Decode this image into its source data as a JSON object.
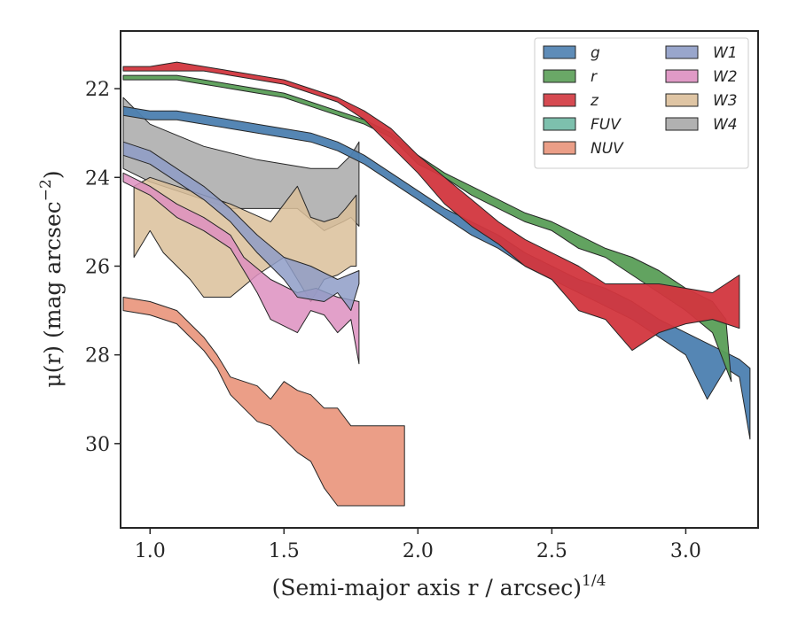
{
  "chart_data": {
    "type": "area",
    "xlabel": "(Semi-major axis r / arcsec)",
    "xlabel_sup": "1/4",
    "ylabel": "μ(r) (mag arcsec",
    "ylabel_sup": "−2",
    "ylabel_tail": ")",
    "xlim": [
      0.89,
      3.27
    ],
    "ylim": [
      20.7,
      31.9
    ],
    "y_inverted": true,
    "grid": false,
    "legend_position": "top-right",
    "legend_columns": 2,
    "x_ticks": [
      1.0,
      1.5,
      2.0,
      2.5,
      3.0
    ],
    "x_tick_labels": [
      "1.0",
      "1.5",
      "2.0",
      "2.5",
      "3.0"
    ],
    "y_ticks": [
      22,
      24,
      26,
      28,
      30
    ],
    "y_tick_labels": [
      "22",
      "24",
      "26",
      "28",
      "30"
    ],
    "series": [
      {
        "name": "W4",
        "color": "#a9a9a9",
        "alpha": 0.85,
        "upper": [
          [
            0.9,
            22.2
          ],
          [
            1.0,
            22.8
          ],
          [
            1.2,
            23.3
          ],
          [
            1.4,
            23.6
          ],
          [
            1.6,
            23.8
          ],
          [
            1.7,
            23.8
          ],
          [
            1.75,
            23.5
          ],
          [
            1.78,
            23.2
          ]
        ],
        "lower": [
          [
            0.9,
            23.8
          ],
          [
            1.0,
            24.1
          ],
          [
            1.15,
            24.4
          ],
          [
            1.3,
            24.7
          ],
          [
            1.45,
            24.7
          ],
          [
            1.55,
            24.7
          ],
          [
            1.65,
            25.2
          ],
          [
            1.72,
            25.0
          ],
          [
            1.75,
            24.9
          ],
          [
            1.78,
            25.1
          ]
        ]
      },
      {
        "name": "W3",
        "color": "#dbbf9a",
        "alpha": 0.85,
        "upper": [
          [
            0.94,
            24.2
          ],
          [
            1.0,
            24.0
          ],
          [
            1.15,
            24.3
          ],
          [
            1.3,
            24.6
          ],
          [
            1.45,
            25.0
          ],
          [
            1.55,
            24.2
          ],
          [
            1.6,
            24.9
          ],
          [
            1.65,
            25.0
          ],
          [
            1.7,
            24.9
          ],
          [
            1.73,
            24.7
          ],
          [
            1.77,
            24.4
          ]
        ],
        "lower": [
          [
            0.94,
            25.8
          ],
          [
            1.0,
            25.2
          ],
          [
            1.05,
            25.7
          ],
          [
            1.15,
            26.3
          ],
          [
            1.2,
            26.7
          ],
          [
            1.3,
            26.7
          ],
          [
            1.4,
            26.2
          ],
          [
            1.5,
            25.8
          ],
          [
            1.55,
            26.3
          ],
          [
            1.6,
            26.8
          ],
          [
            1.65,
            26.3
          ],
          [
            1.7,
            26.2
          ],
          [
            1.75,
            26.0
          ],
          [
            1.77,
            26.0
          ]
        ]
      },
      {
        "name": "W2",
        "color": "#dd8fc0",
        "alpha": 0.85,
        "upper": [
          [
            0.9,
            23.9
          ],
          [
            1.0,
            24.2
          ],
          [
            1.1,
            24.6
          ],
          [
            1.2,
            24.9
          ],
          [
            1.3,
            25.3
          ],
          [
            1.35,
            25.8
          ],
          [
            1.45,
            26.3
          ],
          [
            1.55,
            26.6
          ],
          [
            1.62,
            26.5
          ],
          [
            1.7,
            26.7
          ],
          [
            1.78,
            26.8
          ]
        ],
        "lower": [
          [
            0.9,
            24.1
          ],
          [
            1.0,
            24.4
          ],
          [
            1.1,
            24.9
          ],
          [
            1.2,
            25.2
          ],
          [
            1.3,
            25.6
          ],
          [
            1.4,
            26.6
          ],
          [
            1.45,
            27.2
          ],
          [
            1.55,
            27.5
          ],
          [
            1.6,
            27.0
          ],
          [
            1.65,
            27.1
          ],
          [
            1.7,
            27.5
          ],
          [
            1.75,
            27.2
          ],
          [
            1.78,
            28.2
          ]
        ]
      },
      {
        "name": "W1",
        "color": "#8e9cc7",
        "alpha": 0.85,
        "upper": [
          [
            0.9,
            23.2
          ],
          [
            1.0,
            23.4
          ],
          [
            1.1,
            23.8
          ],
          [
            1.2,
            24.2
          ],
          [
            1.3,
            24.7
          ],
          [
            1.4,
            25.3
          ],
          [
            1.5,
            25.8
          ],
          [
            1.6,
            26.0
          ],
          [
            1.7,
            26.3
          ],
          [
            1.78,
            26.1
          ]
        ],
        "lower": [
          [
            0.9,
            23.5
          ],
          [
            1.0,
            23.7
          ],
          [
            1.1,
            24.1
          ],
          [
            1.2,
            24.5
          ],
          [
            1.3,
            25.0
          ],
          [
            1.4,
            25.7
          ],
          [
            1.5,
            26.3
          ],
          [
            1.55,
            26.7
          ],
          [
            1.65,
            26.8
          ],
          [
            1.7,
            26.6
          ],
          [
            1.75,
            27.0
          ],
          [
            1.78,
            26.4
          ]
        ]
      },
      {
        "name": "FUV",
        "color": "#6fb9a4",
        "alpha": 0.85,
        "upper": [],
        "lower": []
      },
      {
        "name": "NUV",
        "color": "#e9937a",
        "alpha": 0.9,
        "upper": [
          [
            0.9,
            26.7
          ],
          [
            1.0,
            26.8
          ],
          [
            1.1,
            27.0
          ],
          [
            1.15,
            27.3
          ],
          [
            1.2,
            27.6
          ],
          [
            1.25,
            28.0
          ],
          [
            1.3,
            28.5
          ],
          [
            1.35,
            28.6
          ],
          [
            1.4,
            28.7
          ],
          [
            1.45,
            29.0
          ],
          [
            1.5,
            28.6
          ],
          [
            1.55,
            28.8
          ],
          [
            1.6,
            28.9
          ],
          [
            1.65,
            29.2
          ],
          [
            1.7,
            29.2
          ],
          [
            1.75,
            29.6
          ],
          [
            1.85,
            29.6
          ],
          [
            1.95,
            29.6
          ]
        ],
        "lower": [
          [
            0.9,
            27.0
          ],
          [
            1.0,
            27.1
          ],
          [
            1.1,
            27.3
          ],
          [
            1.15,
            27.6
          ],
          [
            1.2,
            27.9
          ],
          [
            1.25,
            28.3
          ],
          [
            1.3,
            28.9
          ],
          [
            1.35,
            29.2
          ],
          [
            1.4,
            29.5
          ],
          [
            1.45,
            29.6
          ],
          [
            1.5,
            29.9
          ],
          [
            1.55,
            30.2
          ],
          [
            1.6,
            30.4
          ],
          [
            1.65,
            31.0
          ],
          [
            1.7,
            31.4
          ],
          [
            1.8,
            31.4
          ],
          [
            1.95,
            31.4
          ]
        ]
      },
      {
        "name": "g",
        "color": "#4c7fb0",
        "alpha": 0.95,
        "upper": [
          [
            0.9,
            22.4
          ],
          [
            1.0,
            22.5
          ],
          [
            1.1,
            22.5
          ],
          [
            1.2,
            22.6
          ],
          [
            1.3,
            22.7
          ],
          [
            1.4,
            22.8
          ],
          [
            1.5,
            22.9
          ],
          [
            1.6,
            23.0
          ],
          [
            1.7,
            23.2
          ],
          [
            1.8,
            23.5
          ],
          [
            1.9,
            23.9
          ],
          [
            2.0,
            24.3
          ],
          [
            2.1,
            24.7
          ],
          [
            2.2,
            25.0
          ],
          [
            2.3,
            25.3
          ],
          [
            2.4,
            25.7
          ],
          [
            2.5,
            26.0
          ],
          [
            2.6,
            26.3
          ],
          [
            2.7,
            26.5
          ],
          [
            2.8,
            26.8
          ],
          [
            2.9,
            27.2
          ],
          [
            3.0,
            27.5
          ],
          [
            3.1,
            27.8
          ],
          [
            3.2,
            28.1
          ],
          [
            3.24,
            28.3
          ]
        ],
        "lower": [
          [
            0.9,
            22.6
          ],
          [
            1.0,
            22.7
          ],
          [
            1.1,
            22.7
          ],
          [
            1.2,
            22.8
          ],
          [
            1.3,
            22.9
          ],
          [
            1.4,
            23.0
          ],
          [
            1.5,
            23.1
          ],
          [
            1.6,
            23.2
          ],
          [
            1.7,
            23.4
          ],
          [
            1.8,
            23.7
          ],
          [
            1.9,
            24.1
          ],
          [
            2.0,
            24.5
          ],
          [
            2.1,
            24.9
          ],
          [
            2.2,
            25.3
          ],
          [
            2.3,
            25.6
          ],
          [
            2.4,
            26.0
          ],
          [
            2.5,
            26.3
          ],
          [
            2.6,
            26.6
          ],
          [
            2.7,
            26.9
          ],
          [
            2.8,
            27.2
          ],
          [
            2.9,
            27.6
          ],
          [
            3.0,
            28.0
          ],
          [
            3.08,
            29.0
          ],
          [
            3.15,
            28.3
          ],
          [
            3.2,
            28.5
          ],
          [
            3.24,
            29.9
          ]
        ]
      },
      {
        "name": "r",
        "color": "#5a9e57",
        "alpha": 0.95,
        "upper": [
          [
            0.9,
            21.7
          ],
          [
            1.0,
            21.7
          ],
          [
            1.1,
            21.7
          ],
          [
            1.2,
            21.8
          ],
          [
            1.3,
            21.9
          ],
          [
            1.4,
            22.0
          ],
          [
            1.5,
            22.1
          ],
          [
            1.6,
            22.3
          ],
          [
            1.7,
            22.5
          ],
          [
            1.8,
            22.7
          ],
          [
            1.9,
            23.0
          ],
          [
            2.0,
            23.5
          ],
          [
            2.1,
            23.9
          ],
          [
            2.2,
            24.2
          ],
          [
            2.3,
            24.5
          ],
          [
            2.4,
            24.8
          ],
          [
            2.5,
            25.0
          ],
          [
            2.6,
            25.3
          ],
          [
            2.7,
            25.6
          ],
          [
            2.8,
            25.8
          ],
          [
            2.9,
            26.1
          ],
          [
            3.0,
            26.5
          ],
          [
            3.1,
            26.8
          ],
          [
            3.15,
            27.2
          ]
        ],
        "lower": [
          [
            0.9,
            21.8
          ],
          [
            1.0,
            21.8
          ],
          [
            1.1,
            21.8
          ],
          [
            1.2,
            21.9
          ],
          [
            1.3,
            22.0
          ],
          [
            1.4,
            22.1
          ],
          [
            1.5,
            22.2
          ],
          [
            1.6,
            22.4
          ],
          [
            1.7,
            22.6
          ],
          [
            1.8,
            22.8
          ],
          [
            1.9,
            23.1
          ],
          [
            2.0,
            23.7
          ],
          [
            2.1,
            24.0
          ],
          [
            2.2,
            24.4
          ],
          [
            2.3,
            24.7
          ],
          [
            2.4,
            25.0
          ],
          [
            2.5,
            25.2
          ],
          [
            2.6,
            25.6
          ],
          [
            2.7,
            25.8
          ],
          [
            2.8,
            26.2
          ],
          [
            2.9,
            26.6
          ],
          [
            3.0,
            27.0
          ],
          [
            3.1,
            27.5
          ],
          [
            3.17,
            28.6
          ]
        ]
      },
      {
        "name": "z",
        "color": "#d2363e",
        "alpha": 0.95,
        "upper": [
          [
            0.9,
            21.5
          ],
          [
            1.0,
            21.5
          ],
          [
            1.1,
            21.4
          ],
          [
            1.2,
            21.5
          ],
          [
            1.3,
            21.6
          ],
          [
            1.4,
            21.7
          ],
          [
            1.5,
            21.8
          ],
          [
            1.6,
            22.0
          ],
          [
            1.7,
            22.2
          ],
          [
            1.8,
            22.5
          ],
          [
            1.9,
            22.9
          ],
          [
            2.0,
            23.5
          ],
          [
            2.1,
            24.0
          ],
          [
            2.2,
            24.5
          ],
          [
            2.3,
            25.0
          ],
          [
            2.4,
            25.4
          ],
          [
            2.5,
            25.7
          ],
          [
            2.6,
            26.0
          ],
          [
            2.7,
            26.4
          ],
          [
            2.8,
            26.4
          ],
          [
            2.9,
            26.4
          ],
          [
            3.0,
            26.5
          ],
          [
            3.1,
            26.6
          ],
          [
            3.2,
            26.2
          ]
        ],
        "lower": [
          [
            0.9,
            21.6
          ],
          [
            1.0,
            21.6
          ],
          [
            1.1,
            21.6
          ],
          [
            1.2,
            21.6
          ],
          [
            1.3,
            21.7
          ],
          [
            1.4,
            21.8
          ],
          [
            1.5,
            21.9
          ],
          [
            1.6,
            22.1
          ],
          [
            1.7,
            22.3
          ],
          [
            1.8,
            22.7
          ],
          [
            1.9,
            23.3
          ],
          [
            2.0,
            23.9
          ],
          [
            2.1,
            24.6
          ],
          [
            2.2,
            25.1
          ],
          [
            2.3,
            25.5
          ],
          [
            2.4,
            26.0
          ],
          [
            2.5,
            26.3
          ],
          [
            2.6,
            27.0
          ],
          [
            2.7,
            27.2
          ],
          [
            2.8,
            27.9
          ],
          [
            2.9,
            27.5
          ],
          [
            3.0,
            27.3
          ],
          [
            3.1,
            27.2
          ],
          [
            3.2,
            27.4
          ]
        ]
      }
    ],
    "legend": [
      {
        "name": "g",
        "color": "#4c7fb0"
      },
      {
        "name": "r",
        "color": "#5a9e57"
      },
      {
        "name": "z",
        "color": "#d2363e"
      },
      {
        "name": "FUV",
        "color": "#6fb9a4"
      },
      {
        "name": "NUV",
        "color": "#e9937a"
      },
      {
        "name": "W1",
        "color": "#8e9cc7"
      },
      {
        "name": "W2",
        "color": "#dd8fc0"
      },
      {
        "name": "W3",
        "color": "#dbbf9a"
      },
      {
        "name": "W4",
        "color": "#a9a9a9"
      }
    ]
  }
}
